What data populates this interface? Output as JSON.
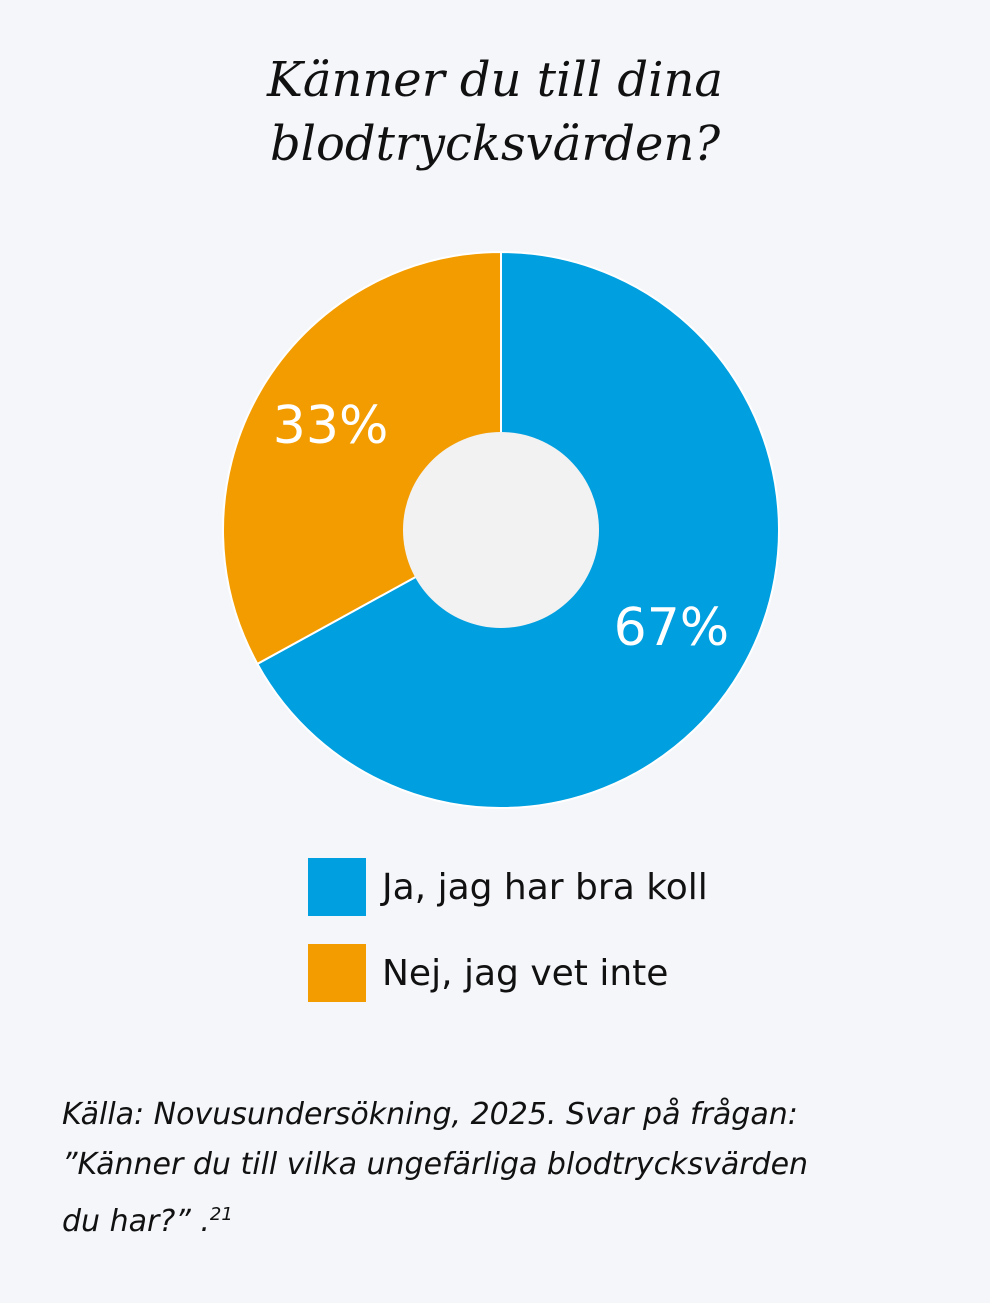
{
  "chart_data": {
    "type": "pie",
    "title_lines": [
      "Känner du till dina",
      "blodtrycksvärden?"
    ],
    "categories": [
      "Ja, jag har bra koll",
      "Nej, jag vet inte"
    ],
    "values": [
      67,
      33
    ],
    "value_labels": [
      "67%",
      "33%"
    ],
    "colors": [
      "#009fe0",
      "#f39c00"
    ],
    "hole_color": "#f2f2f2",
    "donut": true
  },
  "source": {
    "line1": "Källa: Novusundersökning, 2025. Svar på frågan:",
    "line2": "”Känner du till vilka ungefärliga blodtrycksvärden",
    "line3": "du har?” .",
    "footnote": "21"
  }
}
